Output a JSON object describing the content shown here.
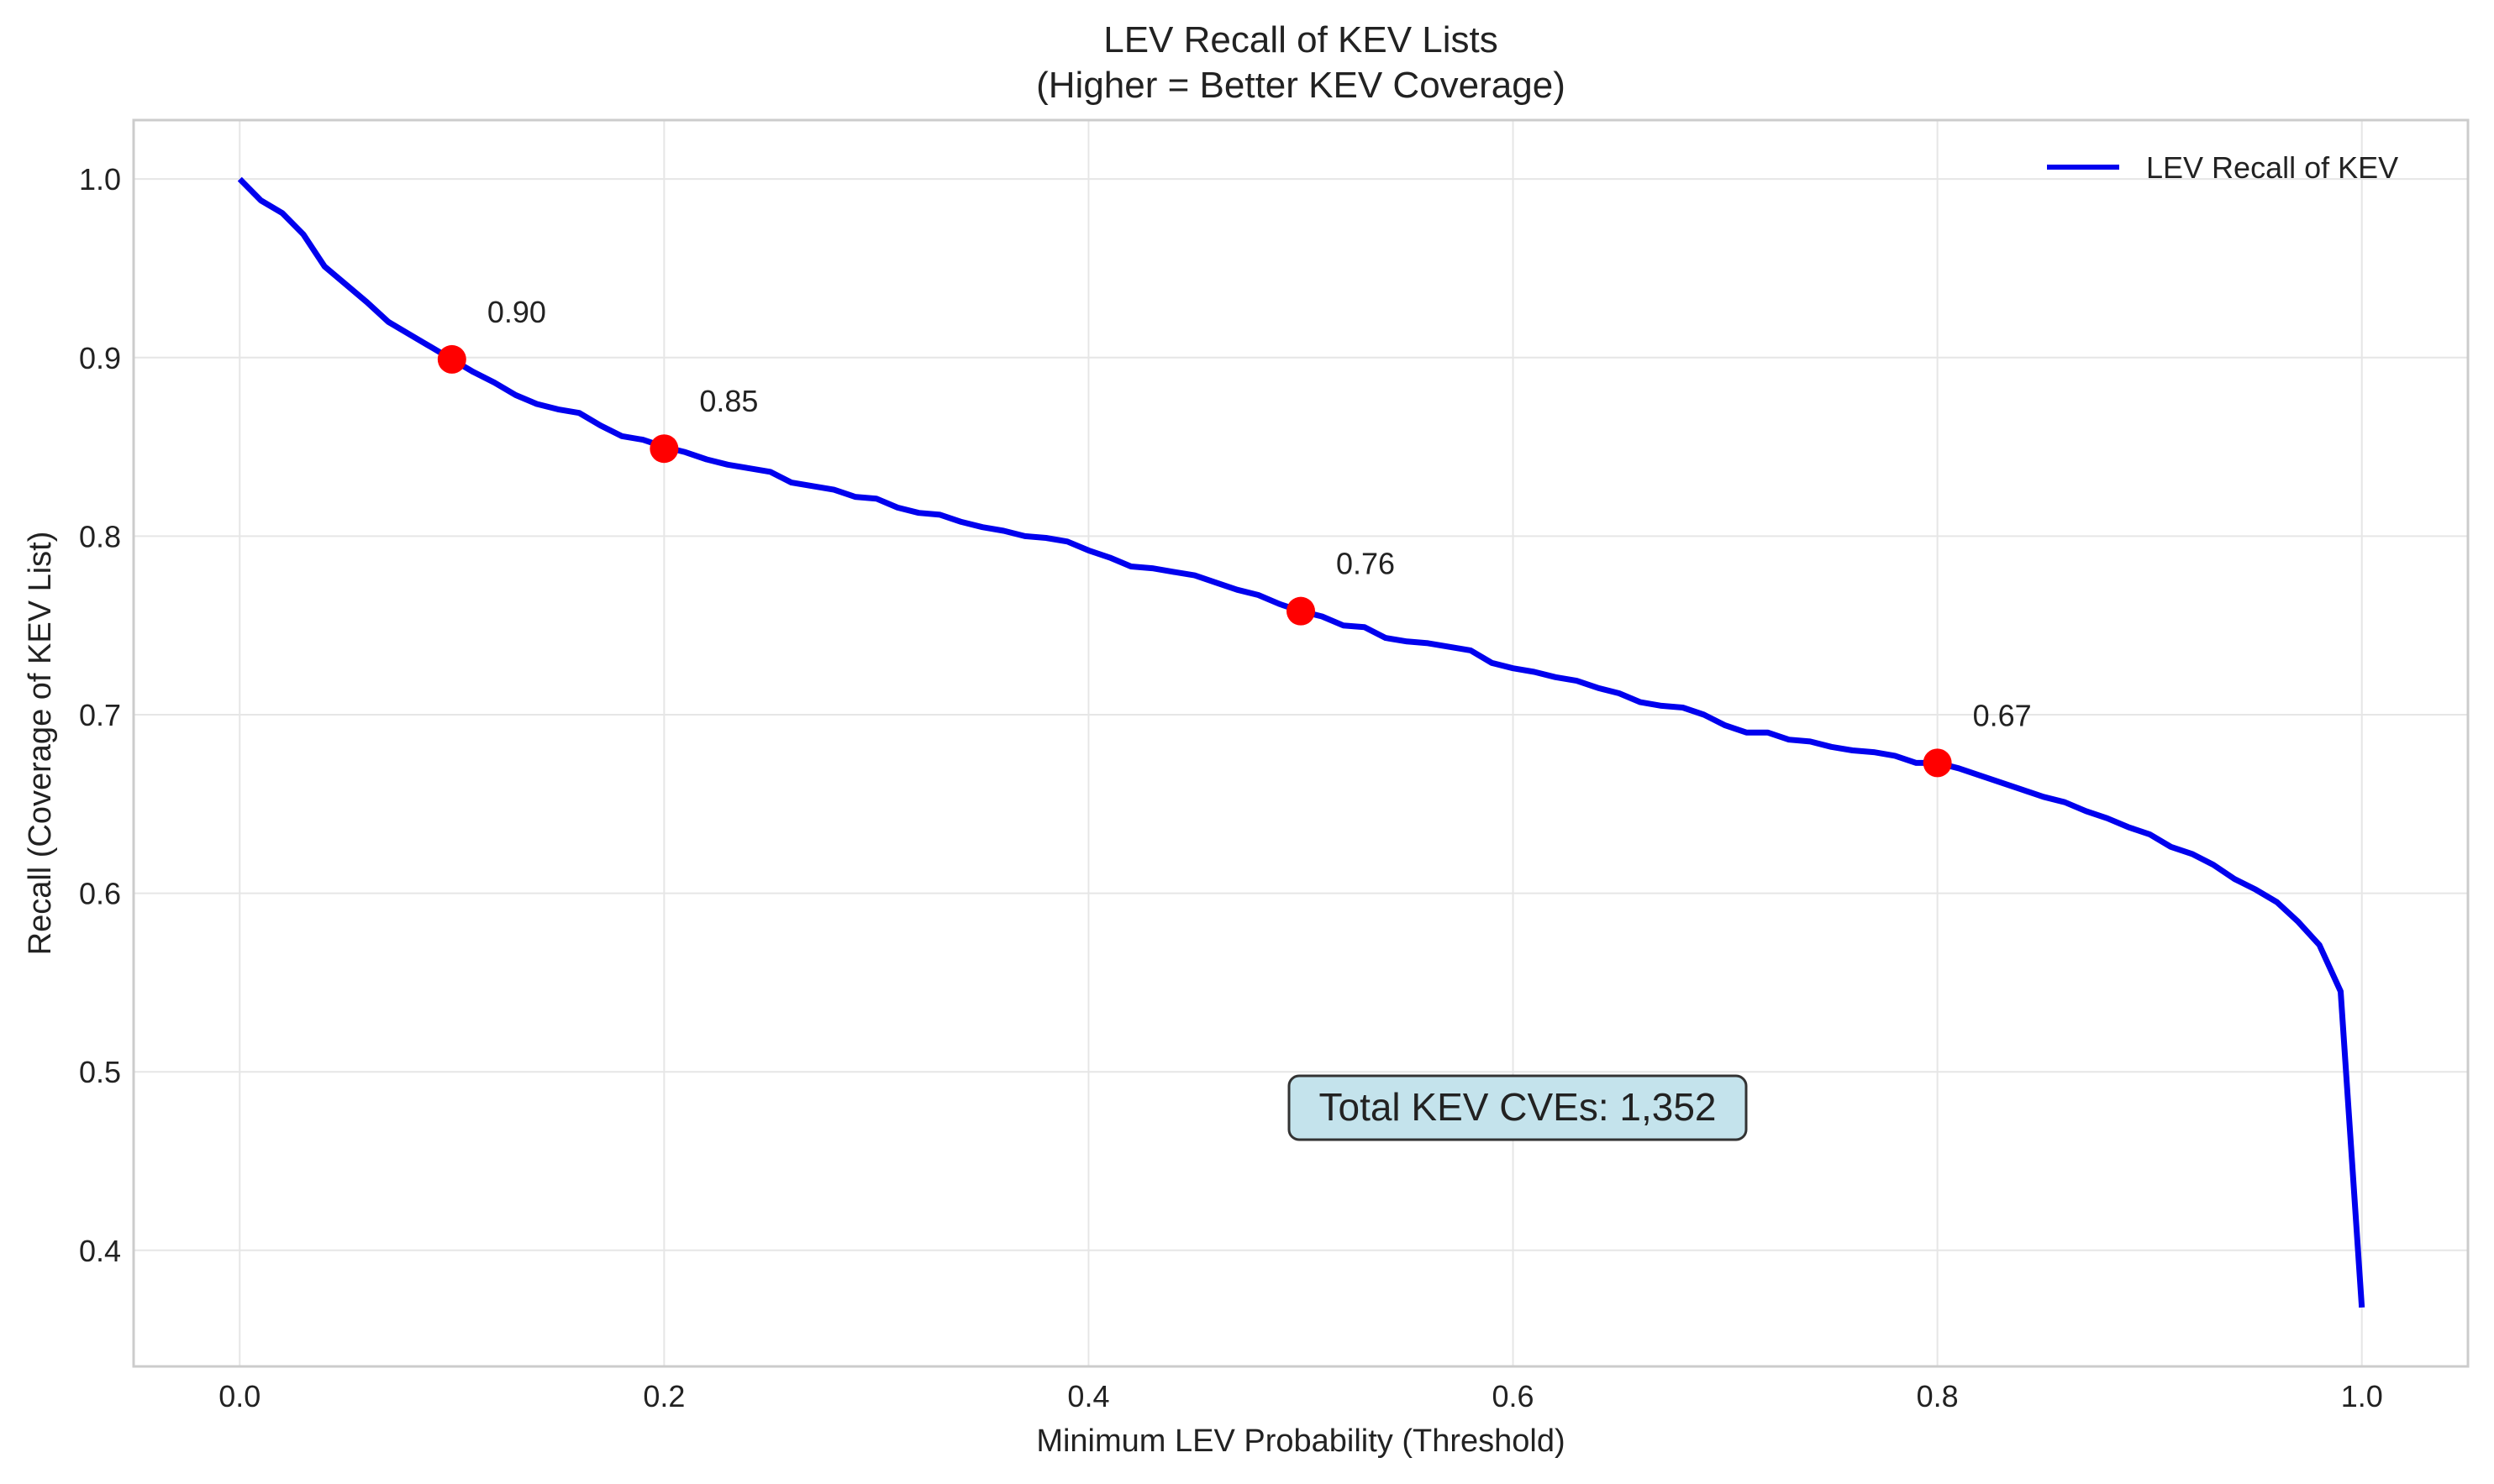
{
  "chart_data": {
    "type": "line",
    "title_line1": "LEV Recall of KEV Lists",
    "title_line2": "(Higher = Better KEV Coverage)",
    "xlabel": "Minimum LEV Probability (Threshold)",
    "ylabel": "Recall (Coverage of KEV List)",
    "xlim": [
      -0.05,
      1.05
    ],
    "ylim": [
      0.335,
      1.033
    ],
    "xticks": [
      0.0,
      0.2,
      0.4,
      0.6,
      0.8,
      1.0
    ],
    "xtick_labels": [
      "0.0",
      "0.2",
      "0.4",
      "0.6",
      "0.8",
      "1.0"
    ],
    "yticks": [
      0.4,
      0.5,
      0.6,
      0.7,
      0.8,
      0.9,
      1.0
    ],
    "ytick_labels": [
      "0.4",
      "0.5",
      "0.6",
      "0.7",
      "0.8",
      "0.9",
      "1.0"
    ],
    "grid": true,
    "legend": {
      "placement": "top-right",
      "entries": [
        {
          "label": "LEV Recall of KEV",
          "color": "#0000ee"
        }
      ]
    },
    "series": [
      {
        "name": "LEV Recall of KEV",
        "color": "#0000ee",
        "x": [
          0.0,
          0.01,
          0.02,
          0.03,
          0.04,
          0.05,
          0.06,
          0.07,
          0.08,
          0.09,
          0.1,
          0.11,
          0.12,
          0.13,
          0.14,
          0.15,
          0.16,
          0.17,
          0.18,
          0.19,
          0.2,
          0.21,
          0.22,
          0.23,
          0.24,
          0.25,
          0.26,
          0.27,
          0.28,
          0.29,
          0.3,
          0.31,
          0.32,
          0.33,
          0.34,
          0.35,
          0.36,
          0.37,
          0.38,
          0.39,
          0.4,
          0.41,
          0.42,
          0.43,
          0.44,
          0.45,
          0.46,
          0.47,
          0.48,
          0.49,
          0.5,
          0.51,
          0.52,
          0.53,
          0.54,
          0.55,
          0.56,
          0.57,
          0.58,
          0.59,
          0.6,
          0.61,
          0.62,
          0.63,
          0.64,
          0.65,
          0.66,
          0.67,
          0.68,
          0.69,
          0.7,
          0.71,
          0.72,
          0.73,
          0.74,
          0.75,
          0.76,
          0.77,
          0.78,
          0.79,
          0.8,
          0.81,
          0.82,
          0.83,
          0.84,
          0.85,
          0.86,
          0.87,
          0.88,
          0.89,
          0.9,
          0.91,
          0.92,
          0.93,
          0.94,
          0.95,
          0.96,
          0.97,
          0.98,
          0.99,
          1.0
        ],
        "y": [
          1.0,
          0.988,
          0.981,
          0.969,
          0.951,
          0.941,
          0.931,
          0.92,
          0.913,
          0.906,
          0.899,
          0.892,
          0.886,
          0.879,
          0.874,
          0.871,
          0.869,
          0.862,
          0.856,
          0.854,
          0.85,
          0.847,
          0.843,
          0.84,
          0.838,
          0.836,
          0.83,
          0.828,
          0.826,
          0.822,
          0.821,
          0.816,
          0.813,
          0.812,
          0.808,
          0.805,
          0.803,
          0.8,
          0.799,
          0.797,
          0.792,
          0.788,
          0.783,
          0.782,
          0.78,
          0.778,
          0.774,
          0.77,
          0.767,
          0.762,
          0.758,
          0.755,
          0.75,
          0.749,
          0.743,
          0.741,
          0.74,
          0.738,
          0.736,
          0.729,
          0.726,
          0.724,
          0.721,
          0.719,
          0.715,
          0.712,
          0.707,
          0.705,
          0.704,
          0.7,
          0.694,
          0.69,
          0.69,
          0.686,
          0.685,
          0.682,
          0.68,
          0.679,
          0.677,
          0.673,
          0.673,
          0.67,
          0.666,
          0.662,
          0.658,
          0.654,
          0.651,
          0.646,
          0.642,
          0.637,
          0.633,
          0.626,
          0.622,
          0.616,
          0.608,
          0.602,
          0.595,
          0.584,
          0.571,
          0.545,
          0.368
        ]
      }
    ],
    "markers": {
      "color": "#ff0000",
      "points": [
        {
          "x": 0.1,
          "y": 0.899,
          "label": "0.90"
        },
        {
          "x": 0.2,
          "y": 0.849,
          "label": "0.85"
        },
        {
          "x": 0.5,
          "y": 0.758,
          "label": "0.76"
        },
        {
          "x": 0.8,
          "y": 0.673,
          "label": "0.67"
        }
      ]
    },
    "info_box": {
      "text": "Total KEV CVEs: 1,352",
      "background": "#c4e3ec",
      "border": "#333333"
    }
  }
}
